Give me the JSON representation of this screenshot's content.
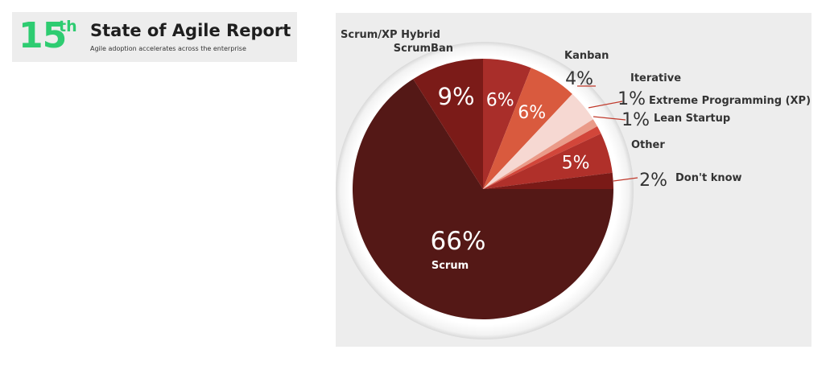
{
  "header": {
    "number": "15",
    "superscript": "th",
    "title": "State of Agile Report",
    "subtitle": "Agile adoption accelerates across the enterprise"
  },
  "colors": {
    "brand_green": "#2ecc71",
    "panel_background": "#ededed"
  },
  "chart_data": {
    "type": "pie",
    "start": "12 o'clock",
    "direction": "clockwise",
    "legend": "none",
    "slices": [
      {
        "label": "Scrum/XP Hybrid",
        "value": 6,
        "value_label": "6%",
        "color": "#a92e2a"
      },
      {
        "label": "Kanban",
        "value": 6,
        "value_label": "6%",
        "color": "#d95a3e"
      },
      {
        "label": "Iterative",
        "value": 4,
        "value_label": "4%",
        "color": "#f6d8d2"
      },
      {
        "label": "Extreme Programming (XP)",
        "value": 1,
        "value_label": "1%",
        "color": "#ea9a88"
      },
      {
        "label": "Lean Startup",
        "value": 1,
        "value_label": "1%",
        "color": "#d2463a"
      },
      {
        "label": "Other",
        "value": 5,
        "value_label": "5%",
        "color": "#b0302a"
      },
      {
        "label": "Don't know",
        "value": 2,
        "value_label": "2%",
        "color": "#7a1a17"
      },
      {
        "label": "Scrum",
        "value": 66,
        "value_label": "66%",
        "color": "#541816"
      },
      {
        "label": "ScrumBan",
        "value": 9,
        "value_label": "9%",
        "color": "#7b1b18"
      }
    ]
  }
}
